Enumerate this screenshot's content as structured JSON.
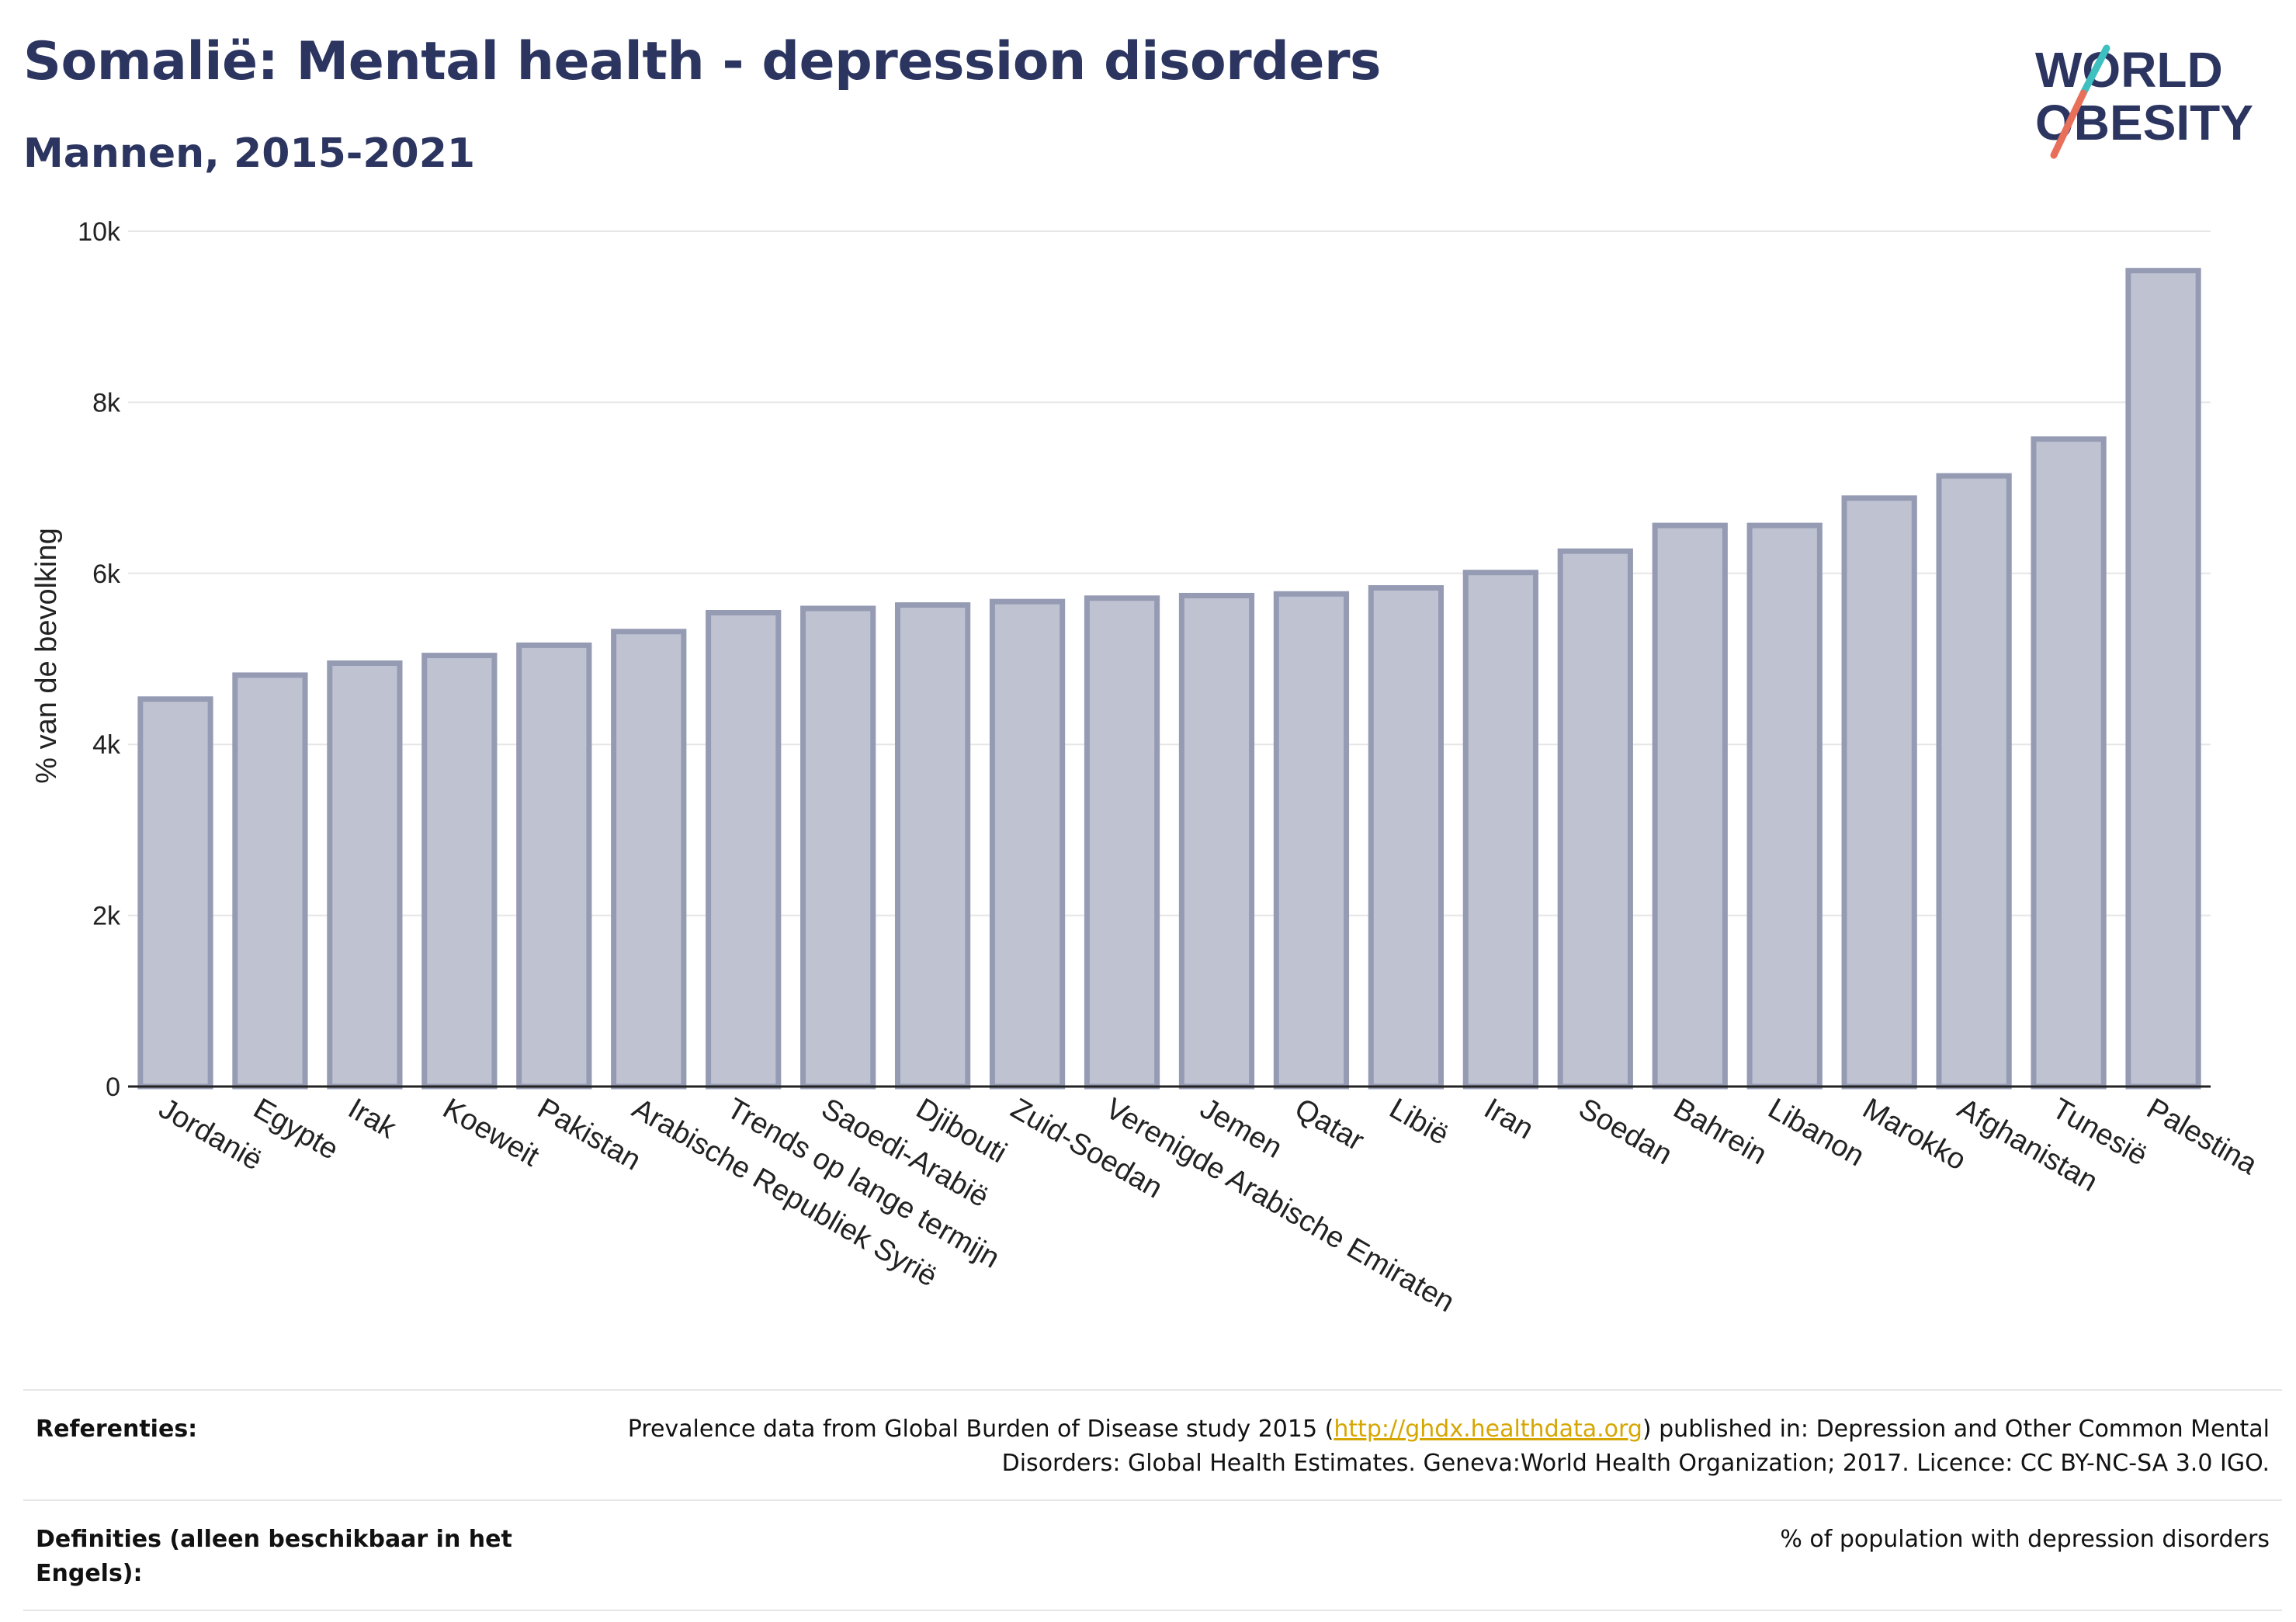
{
  "header": {
    "title": "Somalië: Mental health - depression disorders",
    "subtitle": "Mannen, 2015-2021"
  },
  "logo": {
    "line1": "WORLD",
    "line2": "OBESITY",
    "accent_colors": [
      "#3fc0c0",
      "#e8705a"
    ]
  },
  "chart_data": {
    "type": "bar",
    "ylabel": "% van de bevolking",
    "ylim": [
      0,
      10000
    ],
    "yticks": [
      0,
      2000,
      4000,
      6000,
      8000,
      10000
    ],
    "ytick_labels": [
      "0",
      "2k",
      "4k",
      "6k",
      "8k",
      "10k"
    ],
    "grid": true,
    "bar_color": "#bfc3d1",
    "bar_edge_color": "#969bb4",
    "categories": [
      "Jordanië",
      "Egypte",
      "Irak",
      "Koeweit",
      "Pakistan",
      "Arabische Republiek Syrië",
      "Trends op lange termijn",
      "Saoedi-Arabië",
      "Djibouti",
      "Zuid-Soedan",
      "Verenigde Arabische Emiraten",
      "Jemen",
      "Qatar",
      "Libië",
      "Iran",
      "Soedan",
      "Bahrein",
      "Libanon",
      "Marokko",
      "Afghanistan",
      "Tunesië",
      "Palestina"
    ],
    "values": [
      4530,
      4810,
      4950,
      5040,
      5160,
      5320,
      5540,
      5590,
      5630,
      5670,
      5710,
      5740,
      5760,
      5830,
      6010,
      6260,
      6560,
      6560,
      6880,
      7140,
      7570,
      9540
    ]
  },
  "references": {
    "ref_label": "Referenties:",
    "ref_text_before": "Prevalence data from Global Burden of Disease study 2015 (",
    "ref_link": "http://ghdx.healthdata.org",
    "ref_text_after": ") published in: Depression and Other Common Mental Disorders: Global Health Estimates. Geneva:World Health Organization; 2017. Licence: CC BY-NC-SA 3.0 IGO.",
    "def_label": "Definities (alleen beschikbaar in het Engels):",
    "def_text": "% of population with depression disorders"
  }
}
